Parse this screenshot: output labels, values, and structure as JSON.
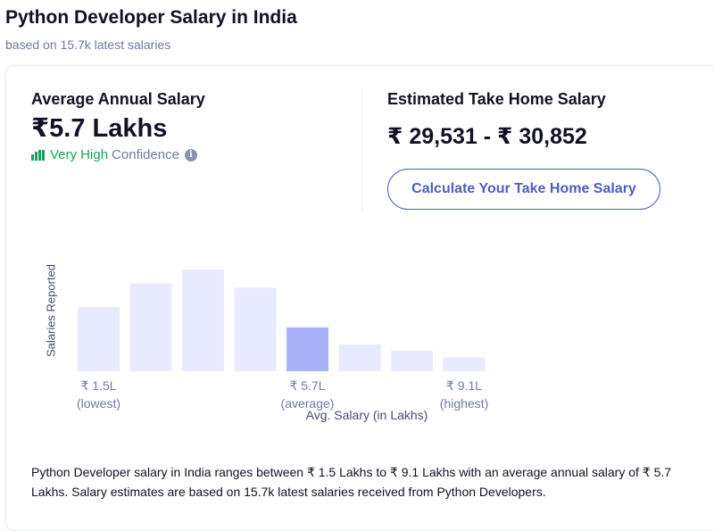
{
  "header": {
    "title": "Python Developer Salary in India",
    "subtitle": "based on 15.7k latest salaries"
  },
  "average": {
    "label": "Average Annual Salary",
    "value": "₹5.7 Lakhs",
    "confidence_level": "Very High",
    "confidence_text": "Confidence",
    "info_icon": "i"
  },
  "take_home": {
    "label": "Estimated Take Home Salary",
    "value": "₹ 29,531 - ₹ 30,852",
    "button_label": "Calculate Your Take Home Salary"
  },
  "colors": {
    "bar": "#e8ebfd",
    "bar_highlight": "#a9b3fa",
    "accent": "#4a5fc1",
    "confidence_green": "#1aa15f"
  },
  "chart_data": {
    "type": "bar",
    "title": "",
    "ylabel": "Salaries Reported",
    "xlabel": "Avg. Salary (in Lakhs)",
    "values": [
      0.6,
      0.82,
      0.95,
      0.78,
      0.41,
      0.25,
      0.19,
      0.13
    ],
    "highlight_index": 4,
    "ticks": [
      {
        "bar_index": 0,
        "value": "₹ 1.5L",
        "sub": "(lowest)"
      },
      {
        "bar_index": 4,
        "value": "₹ 5.7L",
        "sub": "(average)"
      },
      {
        "bar_index": 7,
        "value": "₹ 9.1L",
        "sub": "(highest)"
      }
    ]
  },
  "description": "Python Developer salary in India ranges between ₹ 1.5 Lakhs to ₹ 9.1 Lakhs with an average annual salary of ₹ 5.7 Lakhs. Salary estimates are based on 15.7k latest salaries received from Python Developers."
}
